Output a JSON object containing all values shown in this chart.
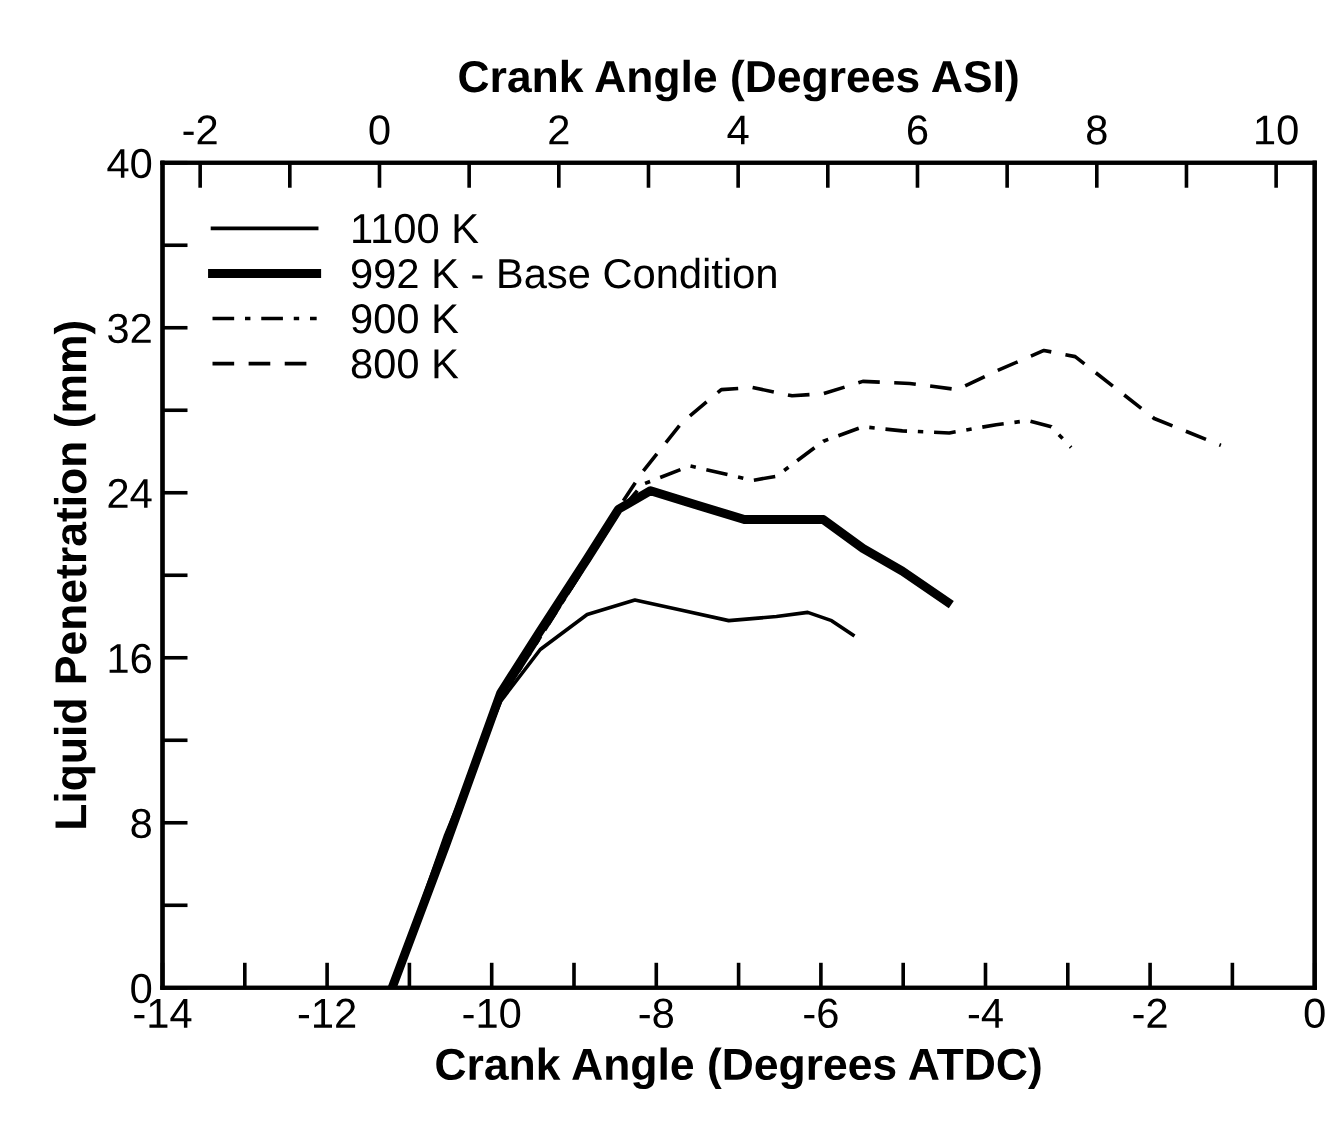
{
  "chart_data": {
    "type": "line",
    "xlabel": "Crank Angle (Degrees ATDC)",
    "ylabel": "Liquid Penetration (mm)",
    "x2label": "Crank Angle (Degrees ASI)",
    "xlim": [
      -14,
      0
    ],
    "xticks": [
      -14,
      {
        "value": -13,
        "label": null
      },
      -12,
      {
        "value": -11,
        "label": null
      },
      -10,
      {
        "value": -9,
        "label": null
      },
      -8,
      {
        "value": -7,
        "label": null
      },
      -6,
      {
        "value": -5,
        "label": null
      },
      -4,
      {
        "value": -3,
        "label": null
      },
      -2,
      {
        "value": -1,
        "label": null
      },
      0
    ],
    "ylim": [
      0,
      40
    ],
    "yticks": [
      0,
      {
        "value": 4,
        "label": null
      },
      8,
      {
        "value": 12,
        "label": null
      },
      16,
      {
        "value": 20,
        "label": null
      },
      24,
      {
        "value": 28,
        "label": null
      },
      32,
      {
        "value": 36,
        "label": null
      },
      40
    ],
    "x2lim": [
      -2.42,
      10.43
    ],
    "x2ticks": [
      -2,
      {
        "value": -1,
        "label": null
      },
      0,
      {
        "value": 1,
        "label": null
      },
      2,
      {
        "value": 3,
        "label": null
      },
      4,
      {
        "value": 5,
        "label": null
      },
      6,
      {
        "value": 7,
        "label": null
      },
      8,
      {
        "value": 9,
        "label": null
      },
      10
    ],
    "grid": false,
    "legend": "top left",
    "marker": "none",
    "series": [
      {
        "name": "1100 K",
        "color": "#000000",
        "line_style": "solid",
        "x": [
          -11.21,
          -10.56,
          -9.89,
          -9.41,
          -8.84,
          -8.26,
          -7.69,
          -7.12,
          -6.54,
          -6.16,
          -5.87,
          -5.61
        ],
        "values": [
          0,
          7.4,
          13.9,
          16.4,
          18.1,
          18.8,
          18.3,
          17.8,
          18.0,
          18.2,
          17.8,
          17.1
        ]
      },
      {
        "name": "992 K - Base Condition",
        "color": "#000000",
        "line_style": "solid",
        "x": [
          -11.21,
          -10.56,
          -9.89,
          -9.41,
          -8.84,
          -8.46,
          -8.07,
          -7.5,
          -6.93,
          -6.35,
          -5.97,
          -5.49,
          -5.01,
          -4.46
        ],
        "values": [
          0,
          6.9,
          14.3,
          17.3,
          20.8,
          23.2,
          24.1,
          23.4,
          22.7,
          22.7,
          22.7,
          21.3,
          20.2,
          18.7
        ]
      },
      {
        "name": "900 K",
        "color": "#000000",
        "line_style": "dashdot",
        "x": [
          -11.21,
          -10.56,
          -9.89,
          -9.41,
          -8.84,
          -8.46,
          -8.17,
          -7.59,
          -6.83,
          -6.54,
          -5.97,
          -5.49,
          -5.01,
          -4.44,
          -3.87,
          -3.48,
          -3.2,
          -2.96
        ],
        "values": [
          0,
          6.8,
          14.0,
          17.0,
          20.6,
          23.0,
          24.4,
          25.3,
          24.6,
          24.8,
          26.5,
          27.2,
          27.0,
          26.9,
          27.3,
          27.5,
          27.2,
          26.2
        ]
      },
      {
        "name": "800 K",
        "color": "#000000",
        "line_style": "dashed",
        "x": [
          -11.21,
          -10.56,
          -9.89,
          -9.41,
          -8.84,
          -8.55,
          -8.17,
          -7.69,
          -7.21,
          -6.83,
          -6.35,
          -5.97,
          -5.49,
          -4.92,
          -4.34,
          -3.87,
          -3.29,
          -2.91,
          -2.43,
          -1.95,
          -1.14
        ],
        "values": [
          0,
          6.8,
          14.0,
          17.0,
          20.6,
          22.7,
          25.0,
          27.4,
          29.0,
          29.1,
          28.7,
          28.8,
          29.4,
          29.3,
          29.0,
          29.9,
          30.9,
          30.6,
          29.1,
          27.6,
          26.3
        ]
      }
    ]
  }
}
